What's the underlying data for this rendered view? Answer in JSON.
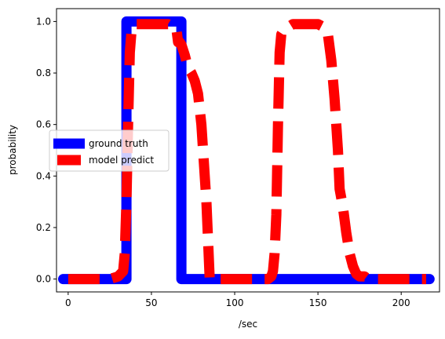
{
  "chart_data": {
    "type": "line",
    "xlabel": "/sec",
    "ylabel": "probability",
    "xlim": [
      -7,
      223
    ],
    "ylim": [
      -0.05,
      1.05
    ],
    "xticks": [
      0,
      50,
      100,
      150,
      200
    ],
    "yticks": [
      0.0,
      0.2,
      0.4,
      0.6,
      0.8,
      1.0
    ],
    "xtick_labels": [
      "0",
      "50",
      "100",
      "150",
      "200"
    ],
    "ytick_labels": [
      "0.0",
      "0.2",
      "0.4",
      "0.6",
      "0.8",
      "1.0"
    ],
    "grid": false,
    "legend": {
      "placement": "center-left"
    },
    "series": [
      {
        "name": "ground truth",
        "color": "#0000ff",
        "style": "solid",
        "x": [
          -3,
          35,
          35,
          68,
          68,
          217
        ],
        "y": [
          0,
          0,
          1,
          1,
          0,
          0
        ]
      },
      {
        "name": "model predict",
        "color": "#ff0000",
        "style": "dashed",
        "x": [
          0,
          10,
          20,
          25,
          30,
          33,
          34,
          35,
          36,
          37,
          38,
          39,
          40,
          45,
          50,
          55,
          60,
          65,
          66,
          67,
          68,
          70,
          72,
          74,
          76,
          78,
          80,
          83,
          85,
          90,
          95,
          100,
          105,
          110,
          115,
          120,
          122,
          123,
          124,
          125,
          126,
          127,
          128,
          130,
          135,
          140,
          145,
          150,
          153,
          156,
          158,
          160,
          162,
          163,
          165,
          167,
          169,
          171,
          173,
          175,
          178,
          180,
          185,
          190,
          195,
          200,
          205,
          210,
          215
        ],
        "y": [
          0.0,
          0.0,
          0.0,
          0.0,
          0.01,
          0.03,
          0.1,
          0.3,
          0.6,
          0.88,
          0.96,
          0.98,
          0.99,
          0.99,
          0.99,
          0.99,
          0.99,
          0.97,
          0.92,
          0.92,
          0.91,
          0.87,
          0.82,
          0.8,
          0.77,
          0.72,
          0.6,
          0.3,
          0.0,
          0.0,
          0.0,
          0.0,
          0.0,
          0.0,
          0.0,
          0.0,
          0.01,
          0.03,
          0.1,
          0.25,
          0.6,
          0.88,
          0.95,
          0.97,
          0.99,
          0.99,
          0.99,
          0.99,
          0.98,
          0.95,
          0.85,
          0.7,
          0.5,
          0.35,
          0.28,
          0.18,
          0.1,
          0.05,
          0.02,
          0.01,
          0.01,
          0.0,
          0.0,
          0.0,
          0.0,
          0.0,
          0.0,
          0.0,
          0.0
        ]
      }
    ]
  }
}
